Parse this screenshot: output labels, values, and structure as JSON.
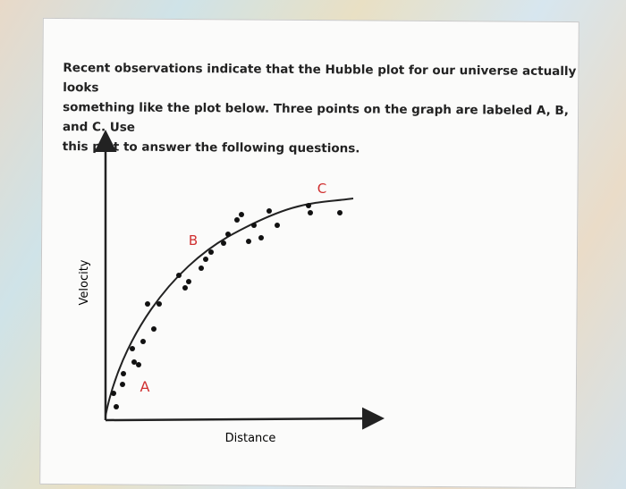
{
  "paragraph": [
    "Recent observations indicate that the Hubble plot for our universe actually looks",
    "something like the plot below. Three points on the graph are labeled A, B, and C. Use",
    "this plot to answer the following questions."
  ],
  "chart": {
    "y_label": "Velocity",
    "x_label": "Distance",
    "point_labels": [
      "A",
      "B",
      "C"
    ]
  }
}
